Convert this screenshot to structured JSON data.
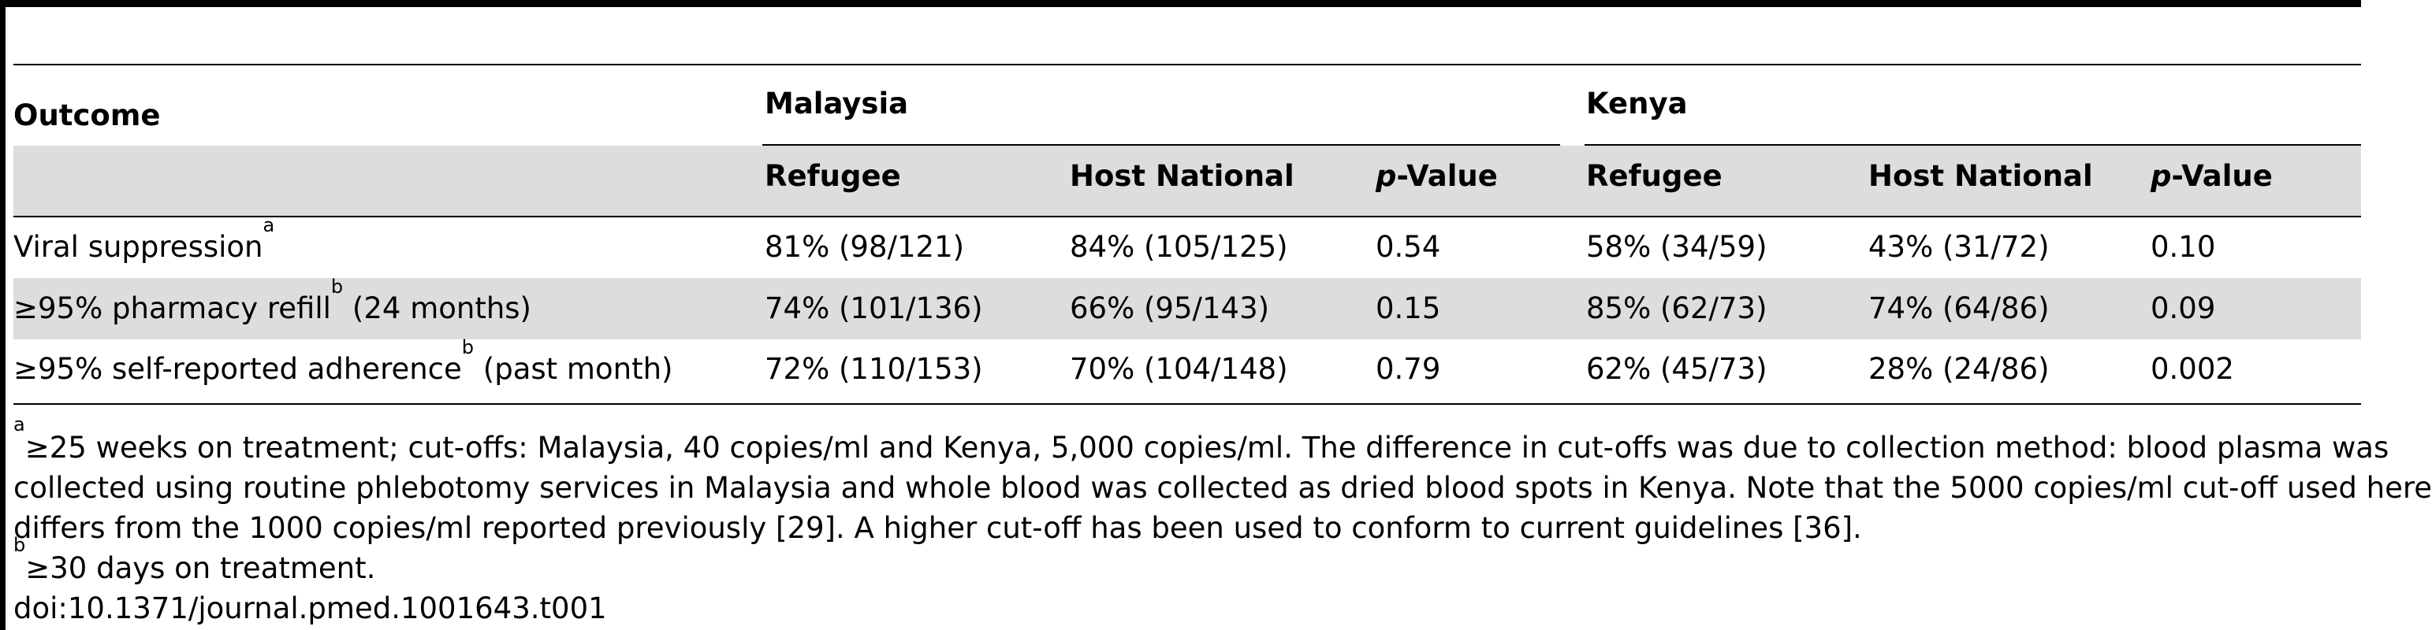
{
  "table": {
    "col_outcome": "Outcome",
    "group_malaysia": "Malaysia",
    "group_kenya": "Kenya",
    "sub_refugee": "Refugee",
    "sub_host": "Host National",
    "sub_p_italic": "p",
    "sub_p_rest": "-Value",
    "rows": [
      {
        "label_main": "Viral suppression",
        "label_sup": "a",
        "label_tail": "",
        "my_refugee": "81% (98/121)",
        "my_host": "84% (105/125)",
        "my_p": "0.54",
        "ke_refugee": "58% (34/59)",
        "ke_host": "43% (31/72)",
        "ke_p": "0.10"
      },
      {
        "label_main": "≥95% pharmacy refill",
        "label_sup": "b",
        "label_tail": " (24 months)",
        "my_refugee": "74% (101/136)",
        "my_host": "66% (95/143)",
        "my_p": "0.15",
        "ke_refugee": "85% (62/73)",
        "ke_host": "74% (64/86)",
        "ke_p": "0.09"
      },
      {
        "label_main": "≥95% self-reported adherence",
        "label_sup": "b",
        "label_tail": " (past month)",
        "my_refugee": "72% (110/153)",
        "my_host": "70% (104/148)",
        "my_p": "0.79",
        "ke_refugee": "62% (45/73)",
        "ke_host": "28% (24/86)",
        "ke_p": "0.002"
      }
    ]
  },
  "footnotes": {
    "a_sup": "a",
    "a_line1": "≥25 weeks on treatment; cut-offs: Malaysia, 40 copies/ml and Kenya, 5,000 copies/ml. The difference in cut-offs was due to collection method: blood plasma was",
    "a_line2": "collected using routine phlebotomy services in Malaysia and whole blood was collected as dried blood spots in Kenya. Note that the 5000 copies/ml cut-off used here",
    "a_line3": "differs from the 1000 copies/ml reported previously [29]. A higher cut-off has been used to conform to current guidelines [36].",
    "b_sup": "b",
    "b_line1": "≥30 days on treatment.",
    "doi": "doi:10.1371/journal.pmed.1001643.t001"
  }
}
